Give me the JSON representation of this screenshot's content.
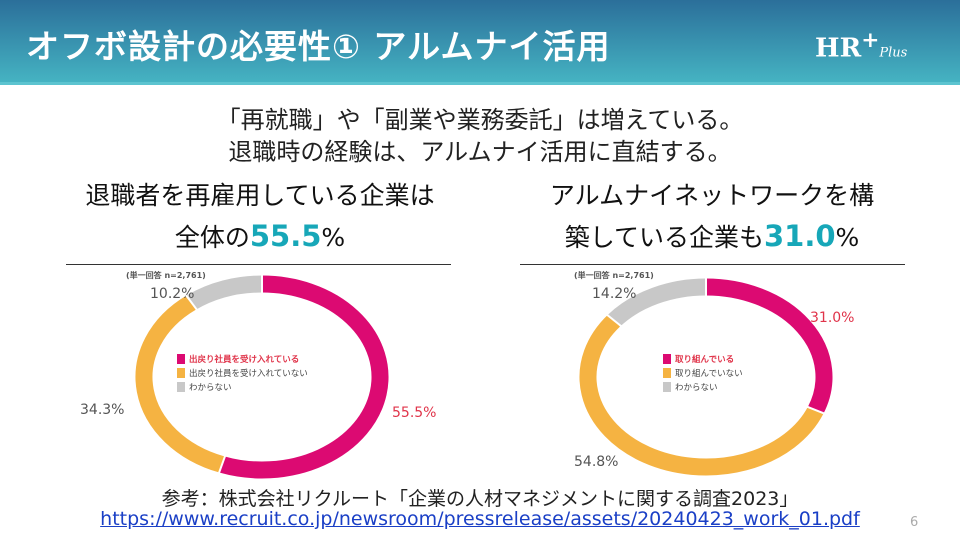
{
  "header": {
    "title": "オフボ設計の必要性① アルムナイ活用",
    "logo": "HR",
    "logo_plus": "+",
    "logo_sub": "Plus"
  },
  "lead": [
    "「再就職」や「副業や業務委託」は増えている。",
    "退職時の経験は、アルムナイ活用に直結する。"
  ],
  "left": {
    "heading_1": "退職者を再雇用している企業は",
    "heading_2a": "全体の",
    "heading_value": "55.5",
    "heading_2b": "%"
  },
  "right": {
    "heading_1": "アルムナイネットワークを構",
    "heading_2a": "築している企業も",
    "heading_value": "31.0",
    "heading_2b": "%"
  },
  "colors": {
    "magenta": "#dc0a72",
    "orange": "#f5b342",
    "gray": "#c8c8c8",
    "accent": "#17a7b8"
  },
  "chart_data": [
    {
      "type": "pie",
      "note": "(単一回答 n=2,761)",
      "labels": [
        "出戻り社員を受け入れている",
        "出戻り社員を受け入れていない",
        "わからない"
      ],
      "values": [
        55.5,
        34.3,
        10.2
      ],
      "value_labels": [
        "55.5%",
        "34.3%",
        "10.2%"
      ]
    },
    {
      "type": "pie",
      "note": "(単一回答 n=2,761)",
      "labels": [
        "取り組んでいる",
        "取り組んでいない",
        "わからない"
      ],
      "values": [
        31.0,
        54.8,
        14.2
      ],
      "value_labels": [
        "31.0%",
        "54.8%",
        "14.2%"
      ]
    }
  ],
  "source": {
    "text": "参考：株式会社リクルート「企業の人材マネジメントに関する調査2023」",
    "url": "https://www.recruit.co.jp/newsroom/pressrelease/assets/20240423_work_01.pdf"
  },
  "page_number": "6"
}
